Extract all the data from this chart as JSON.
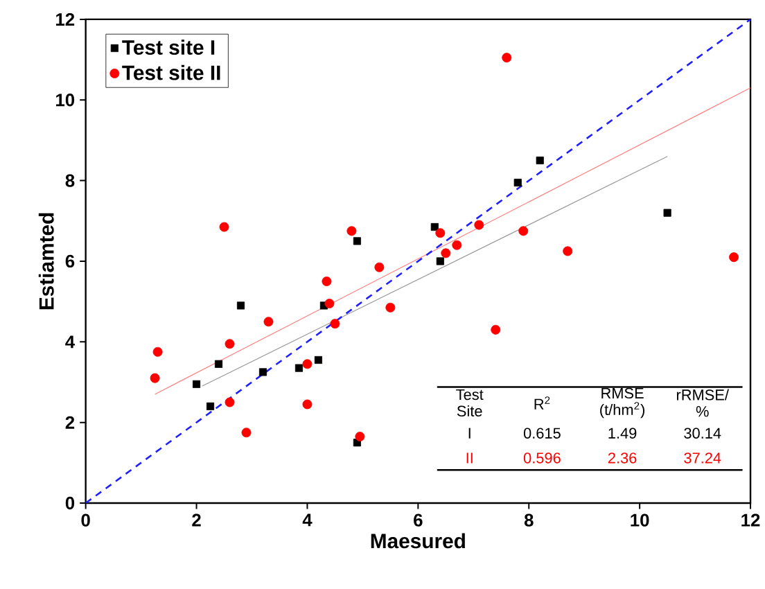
{
  "chart_data": {
    "type": "scatter",
    "xlabel": "Maesured",
    "ylabel": "Estiamted",
    "xlim": [
      0,
      12
    ],
    "ylim": [
      0,
      12
    ],
    "xticks": [
      0,
      2,
      4,
      6,
      8,
      10,
      12
    ],
    "yticks": [
      0,
      2,
      4,
      6,
      8,
      10,
      12
    ],
    "legend": "top left",
    "grid": false,
    "series": [
      {
        "name": "Test site I",
        "marker": "square",
        "color": "#000000",
        "x": [
          2.0,
          2.25,
          2.4,
          2.8,
          3.2,
          3.85,
          4.2,
          4.3,
          4.9,
          4.9,
          6.3,
          6.4,
          7.8,
          8.2,
          10.5
        ],
        "values": [
          2.95,
          2.4,
          3.45,
          4.9,
          3.25,
          3.35,
          3.55,
          4.9,
          1.5,
          6.5,
          6.85,
          6.0,
          7.95,
          8.5,
          7.2
        ]
      },
      {
        "name": "Test site II",
        "marker": "circle",
        "color": "#ff0000",
        "x": [
          1.25,
          1.3,
          2.5,
          2.6,
          2.6,
          2.9,
          3.3,
          4.0,
          4.0,
          4.35,
          4.4,
          4.5,
          4.8,
          4.95,
          5.3,
          5.5,
          6.4,
          6.5,
          6.7,
          7.1,
          7.4,
          7.6,
          7.9,
          8.7,
          11.7
        ],
        "values": [
          3.1,
          3.75,
          6.85,
          3.95,
          2.5,
          1.75,
          4.5,
          3.45,
          2.45,
          5.5,
          4.95,
          4.45,
          6.75,
          1.65,
          5.85,
          4.85,
          6.7,
          6.2,
          6.4,
          6.9,
          4.3,
          11.05,
          6.75,
          6.25,
          6.1
        ]
      },
      {
        "type": "line",
        "color": "#999999",
        "line_style": "solid",
        "x": [
          2.1,
          10.5
        ],
        "values": [
          2.9,
          8.6
        ]
      },
      {
        "type": "line",
        "color": "#ff8080",
        "line_style": "solid",
        "x": [
          1.25,
          12
        ],
        "values": [
          2.7,
          10.3
        ]
      },
      {
        "type": "line",
        "color": "#2020ff",
        "line_style": "dashed",
        "x": [
          0,
          12
        ],
        "values": [
          0,
          12
        ]
      }
    ],
    "annotations": [
      "Test Site",
      "R$^{2}$",
      "RMSE (t/hm$^{2}$)",
      "rRMSE/ %",
      "I",
      "0.615",
      "1.49",
      "30.14",
      "II",
      "0.596",
      "2.36",
      "37.24"
    ]
  }
}
